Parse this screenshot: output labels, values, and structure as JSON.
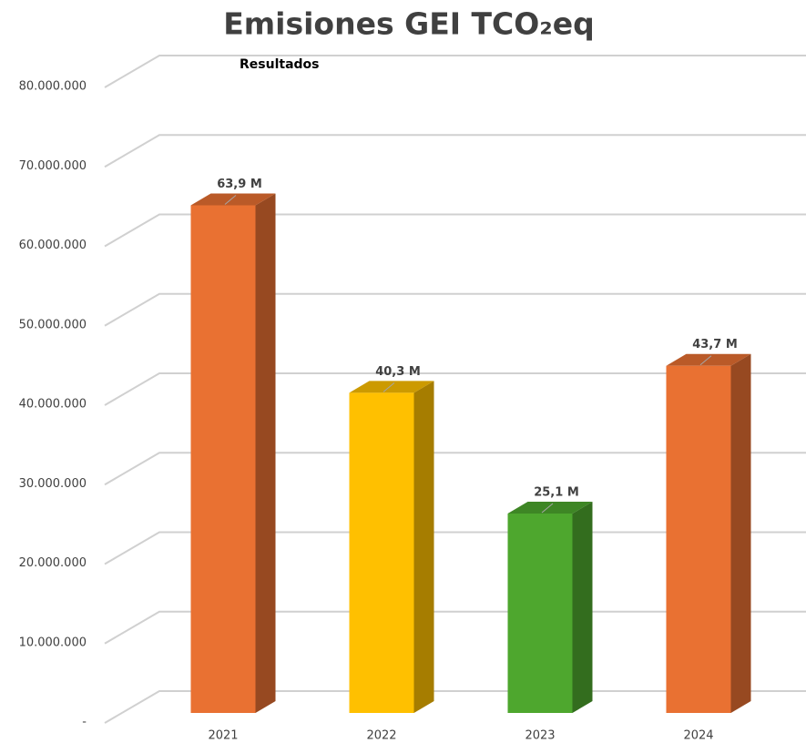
{
  "chart_data": {
    "type": "bar3d",
    "title": "Emisiones GEI TCO₂eq",
    "subtitle": "Resultados",
    "categories": [
      "2021",
      "2022",
      "2023",
      "2024"
    ],
    "values": [
      63900000,
      40300000,
      25100000,
      43700000
    ],
    "value_labels": [
      "63,9 M",
      "40,3 M",
      "25,1 M",
      "43,7 M"
    ],
    "colors": [
      "#E97132",
      "#FFC000",
      "#4EA72E",
      "#E97132"
    ],
    "ylim": [
      0,
      80000000
    ],
    "yticks": [
      {
        "value": 0,
        "label": "-"
      },
      {
        "value": 10000000,
        "label": "10.000.000"
      },
      {
        "value": 20000000,
        "label": "20.000.000"
      },
      {
        "value": 30000000,
        "label": "30.000.000"
      },
      {
        "value": 40000000,
        "label": "40.000.000"
      },
      {
        "value": 50000000,
        "label": "50.000.000"
      },
      {
        "value": 60000000,
        "label": "60.000.000"
      },
      {
        "value": 70000000,
        "label": "70.000.000"
      },
      {
        "value": 80000000,
        "label": "80.000.000"
      }
    ],
    "grid": true
  }
}
